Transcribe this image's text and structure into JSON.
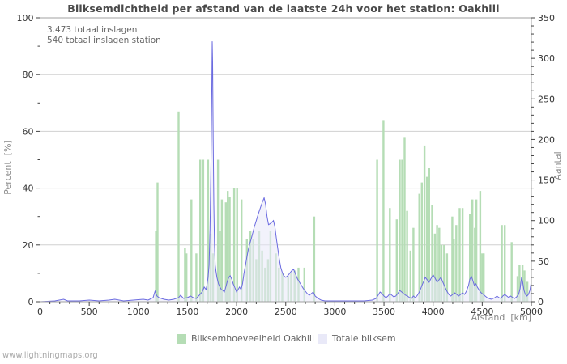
{
  "page": {
    "title": "Bliksemdichtheid per afstand van de laatste 24h voor het station: Oakhill",
    "watermark": "www.lightningmaps.org"
  },
  "annotation": {
    "line1": "3.473 totaal inslagen",
    "line2": "540 totaal inslagen station"
  },
  "axes": {
    "x_title": "Afstand  [km]",
    "y_left_title": "Percent  [%]",
    "y_right_title": "Aantal"
  },
  "legend": {
    "items": [
      {
        "label": "Bliksemhoeveelheid Oakhill",
        "color": "#b5ddb5"
      },
      {
        "label": "Totale bliksem",
        "color": "#e9e9f8"
      }
    ]
  },
  "colors": {
    "bar_green": "#b5ddb5",
    "line_blue": "#6b6be0",
    "area_fill": "#e8e8f8",
    "grid": "#d0d0d0",
    "border": "#a0a0a0",
    "tick": "#444444",
    "tick_label": "#333333"
  },
  "chart_data": {
    "type": "bar",
    "title": "Bliksemdichtheid per afstand van de laatste 24h voor het station: Oakhill",
    "xlabel": "Afstand [km]",
    "ylabel_left": "Percent [%]",
    "ylabel_right": "Aantal",
    "xlim": [
      0,
      5000
    ],
    "ylim_left": [
      0,
      100
    ],
    "ylim_right": [
      0,
      350
    ],
    "x_major_ticks": [
      0,
      500,
      1000,
      1500,
      2000,
      2500,
      3000,
      3500,
      4000,
      4500,
      5000
    ],
    "x_minor_step": 100,
    "y_left_major_ticks": [
      0,
      20,
      40,
      60,
      80,
      100
    ],
    "y_left_minor_step": 10,
    "y_right_major_ticks": [
      0,
      50,
      100,
      150,
      200,
      250,
      300,
      350
    ],
    "y_right_minor_step": 10,
    "grid_percent_lines": [
      20,
      40,
      60,
      80
    ],
    "grid_on": true,
    "legend_position": "bottom",
    "series": [
      {
        "name": "Bliksemhoeveelheid Oakhill",
        "type": "bar",
        "axis": "left",
        "unit": "percent",
        "color": "#b5ddb5",
        "points": [
          [
            1180,
            25
          ],
          [
            1195,
            42
          ],
          [
            1410,
            67
          ],
          [
            1475,
            19
          ],
          [
            1490,
            17
          ],
          [
            1540,
            36
          ],
          [
            1590,
            17
          ],
          [
            1630,
            50
          ],
          [
            1660,
            50
          ],
          [
            1710,
            50
          ],
          [
            1735,
            24
          ],
          [
            1760,
            17
          ],
          [
            1810,
            50
          ],
          [
            1830,
            25
          ],
          [
            1850,
            36
          ],
          [
            1890,
            35
          ],
          [
            1910,
            39
          ],
          [
            1930,
            37
          ],
          [
            1975,
            40
          ],
          [
            2005,
            40
          ],
          [
            2050,
            36
          ],
          [
            2105,
            22
          ],
          [
            2140,
            25
          ],
          [
            2170,
            22
          ],
          [
            2200,
            15
          ],
          [
            2230,
            25
          ],
          [
            2260,
            18
          ],
          [
            2290,
            12
          ],
          [
            2320,
            15
          ],
          [
            2345,
            25
          ],
          [
            2400,
            17
          ],
          [
            2430,
            12
          ],
          [
            2465,
            10
          ],
          [
            2525,
            9
          ],
          [
            2555,
            10
          ],
          [
            2590,
            11
          ],
          [
            2630,
            12
          ],
          [
            2690,
            12
          ],
          [
            2790,
            30
          ],
          [
            3430,
            50
          ],
          [
            3495,
            64
          ],
          [
            3560,
            33
          ],
          [
            3630,
            29
          ],
          [
            3660,
            50
          ],
          [
            3685,
            50
          ],
          [
            3710,
            58
          ],
          [
            3735,
            32
          ],
          [
            3770,
            18
          ],
          [
            3800,
            26
          ],
          [
            3860,
            38
          ],
          [
            3885,
            42
          ],
          [
            3913,
            55
          ],
          [
            3938,
            44
          ],
          [
            3960,
            47
          ],
          [
            3990,
            34
          ],
          [
            4018,
            24
          ],
          [
            4040,
            27
          ],
          [
            4063,
            26
          ],
          [
            4085,
            20
          ],
          [
            4112,
            20
          ],
          [
            4142,
            17
          ],
          [
            4195,
            30
          ],
          [
            4211,
            22
          ],
          [
            4236,
            27
          ],
          [
            4270,
            33
          ],
          [
            4300,
            33
          ],
          [
            4375,
            31
          ],
          [
            4400,
            36
          ],
          [
            4425,
            26
          ],
          [
            4440,
            36
          ],
          [
            4480,
            39
          ],
          [
            4500,
            17
          ],
          [
            4515,
            17
          ],
          [
            4700,
            27
          ],
          [
            4730,
            27
          ],
          [
            4800,
            21
          ],
          [
            4860,
            9
          ],
          [
            4880,
            13
          ],
          [
            4910,
            13
          ],
          [
            4930,
            11
          ],
          [
            4960,
            7
          ]
        ]
      },
      {
        "name": "Totale bliksem",
        "type": "line-area",
        "axis": "right",
        "unit": "count",
        "line_color": "#6b6be0",
        "fill_color": "#e8e8f8",
        "points": [
          [
            0,
            0
          ],
          [
            150,
            1
          ],
          [
            240,
            3
          ],
          [
            280,
            1
          ],
          [
            400,
            1
          ],
          [
            500,
            2
          ],
          [
            600,
            1
          ],
          [
            700,
            2
          ],
          [
            760,
            3
          ],
          [
            850,
            1
          ],
          [
            950,
            2
          ],
          [
            1050,
            3
          ],
          [
            1100,
            2
          ],
          [
            1150,
            5
          ],
          [
            1170,
            13
          ],
          [
            1190,
            7
          ],
          [
            1210,
            5
          ],
          [
            1260,
            3
          ],
          [
            1310,
            2
          ],
          [
            1360,
            3
          ],
          [
            1410,
            5
          ],
          [
            1430,
            8
          ],
          [
            1460,
            4
          ],
          [
            1500,
            5
          ],
          [
            1530,
            7
          ],
          [
            1560,
            5
          ],
          [
            1590,
            4
          ],
          [
            1620,
            8
          ],
          [
            1650,
            12
          ],
          [
            1670,
            18
          ],
          [
            1690,
            15
          ],
          [
            1700,
            22
          ],
          [
            1710,
            30
          ],
          [
            1720,
            45
          ],
          [
            1730,
            90
          ],
          [
            1740,
            180
          ],
          [
            1748,
            260
          ],
          [
            1752,
            321
          ],
          [
            1756,
            295
          ],
          [
            1762,
            200
          ],
          [
            1768,
            120
          ],
          [
            1775,
            70
          ],
          [
            1782,
            45
          ],
          [
            1790,
            38
          ],
          [
            1800,
            30
          ],
          [
            1815,
            22
          ],
          [
            1830,
            18
          ],
          [
            1845,
            15
          ],
          [
            1860,
            14
          ],
          [
            1875,
            12
          ],
          [
            1890,
            18
          ],
          [
            1905,
            25
          ],
          [
            1920,
            30
          ],
          [
            1935,
            32
          ],
          [
            1950,
            28
          ],
          [
            1965,
            22
          ],
          [
            1980,
            18
          ],
          [
            2000,
            12
          ],
          [
            2015,
            15
          ],
          [
            2030,
            18
          ],
          [
            2045,
            15
          ],
          [
            2060,
            22
          ],
          [
            2075,
            35
          ],
          [
            2090,
            45
          ],
          [
            2105,
            55
          ],
          [
            2120,
            65
          ],
          [
            2135,
            72
          ],
          [
            2150,
            78
          ],
          [
            2165,
            85
          ],
          [
            2180,
            92
          ],
          [
            2200,
            100
          ],
          [
            2220,
            108
          ],
          [
            2240,
            115
          ],
          [
            2260,
            122
          ],
          [
            2280,
            128
          ],
          [
            2295,
            120
          ],
          [
            2310,
            105
          ],
          [
            2325,
            95
          ],
          [
            2340,
            96
          ],
          [
            2360,
            98
          ],
          [
            2375,
            100
          ],
          [
            2390,
            92
          ],
          [
            2405,
            78
          ],
          [
            2420,
            65
          ],
          [
            2435,
            52
          ],
          [
            2450,
            42
          ],
          [
            2465,
            36
          ],
          [
            2480,
            32
          ],
          [
            2500,
            30
          ],
          [
            2520,
            32
          ],
          [
            2540,
            35
          ],
          [
            2560,
            38
          ],
          [
            2580,
            40
          ],
          [
            2600,
            34
          ],
          [
            2620,
            28
          ],
          [
            2640,
            24
          ],
          [
            2660,
            20
          ],
          [
            2680,
            16
          ],
          [
            2700,
            13
          ],
          [
            2720,
            10
          ],
          [
            2740,
            8
          ],
          [
            2760,
            10
          ],
          [
            2780,
            12
          ],
          [
            2800,
            7
          ],
          [
            2830,
            4
          ],
          [
            2860,
            2
          ],
          [
            2900,
            1
          ],
          [
            3000,
            1
          ],
          [
            3100,
            1
          ],
          [
            3200,
            1
          ],
          [
            3300,
            1
          ],
          [
            3380,
            2
          ],
          [
            3420,
            4
          ],
          [
            3440,
            8
          ],
          [
            3460,
            12
          ],
          [
            3480,
            10
          ],
          [
            3500,
            7
          ],
          [
            3520,
            5
          ],
          [
            3540,
            7
          ],
          [
            3560,
            10
          ],
          [
            3580,
            8
          ],
          [
            3600,
            6
          ],
          [
            3620,
            7
          ],
          [
            3640,
            10
          ],
          [
            3660,
            14
          ],
          [
            3680,
            12
          ],
          [
            3700,
            10
          ],
          [
            3720,
            8
          ],
          [
            3740,
            7
          ],
          [
            3760,
            5
          ],
          [
            3780,
            4
          ],
          [
            3800,
            7
          ],
          [
            3820,
            5
          ],
          [
            3840,
            8
          ],
          [
            3860,
            12
          ],
          [
            3880,
            18
          ],
          [
            3900,
            24
          ],
          [
            3920,
            30
          ],
          [
            3940,
            27
          ],
          [
            3960,
            24
          ],
          [
            3980,
            29
          ],
          [
            4000,
            33
          ],
          [
            4020,
            29
          ],
          [
            4040,
            24
          ],
          [
            4060,
            27
          ],
          [
            4080,
            30
          ],
          [
            4100,
            24
          ],
          [
            4120,
            18
          ],
          [
            4140,
            13
          ],
          [
            4160,
            9
          ],
          [
            4180,
            7
          ],
          [
            4200,
            9
          ],
          [
            4220,
            11
          ],
          [
            4240,
            9
          ],
          [
            4260,
            7
          ],
          [
            4280,
            9
          ],
          [
            4300,
            11
          ],
          [
            4320,
            9
          ],
          [
            4340,
            13
          ],
          [
            4360,
            20
          ],
          [
            4375,
            28
          ],
          [
            4390,
            31
          ],
          [
            4405,
            26
          ],
          [
            4420,
            20
          ],
          [
            4435,
            22
          ],
          [
            4450,
            18
          ],
          [
            4470,
            14
          ],
          [
            4490,
            11
          ],
          [
            4510,
            9
          ],
          [
            4530,
            7
          ],
          [
            4550,
            5
          ],
          [
            4570,
            4
          ],
          [
            4590,
            3
          ],
          [
            4610,
            4
          ],
          [
            4630,
            5
          ],
          [
            4650,
            7
          ],
          [
            4670,
            5
          ],
          [
            4690,
            4
          ],
          [
            4710,
            7
          ],
          [
            4730,
            9
          ],
          [
            4750,
            7
          ],
          [
            4770,
            5
          ],
          [
            4790,
            7
          ],
          [
            4810,
            5
          ],
          [
            4830,
            4
          ],
          [
            4850,
            6
          ],
          [
            4870,
            9
          ],
          [
            4885,
            16
          ],
          [
            4900,
            30
          ],
          [
            4912,
            24
          ],
          [
            4925,
            14
          ],
          [
            4940,
            9
          ],
          [
            4955,
            7
          ],
          [
            4970,
            9
          ],
          [
            4985,
            14
          ],
          [
            5000,
            25
          ]
        ]
      }
    ]
  }
}
